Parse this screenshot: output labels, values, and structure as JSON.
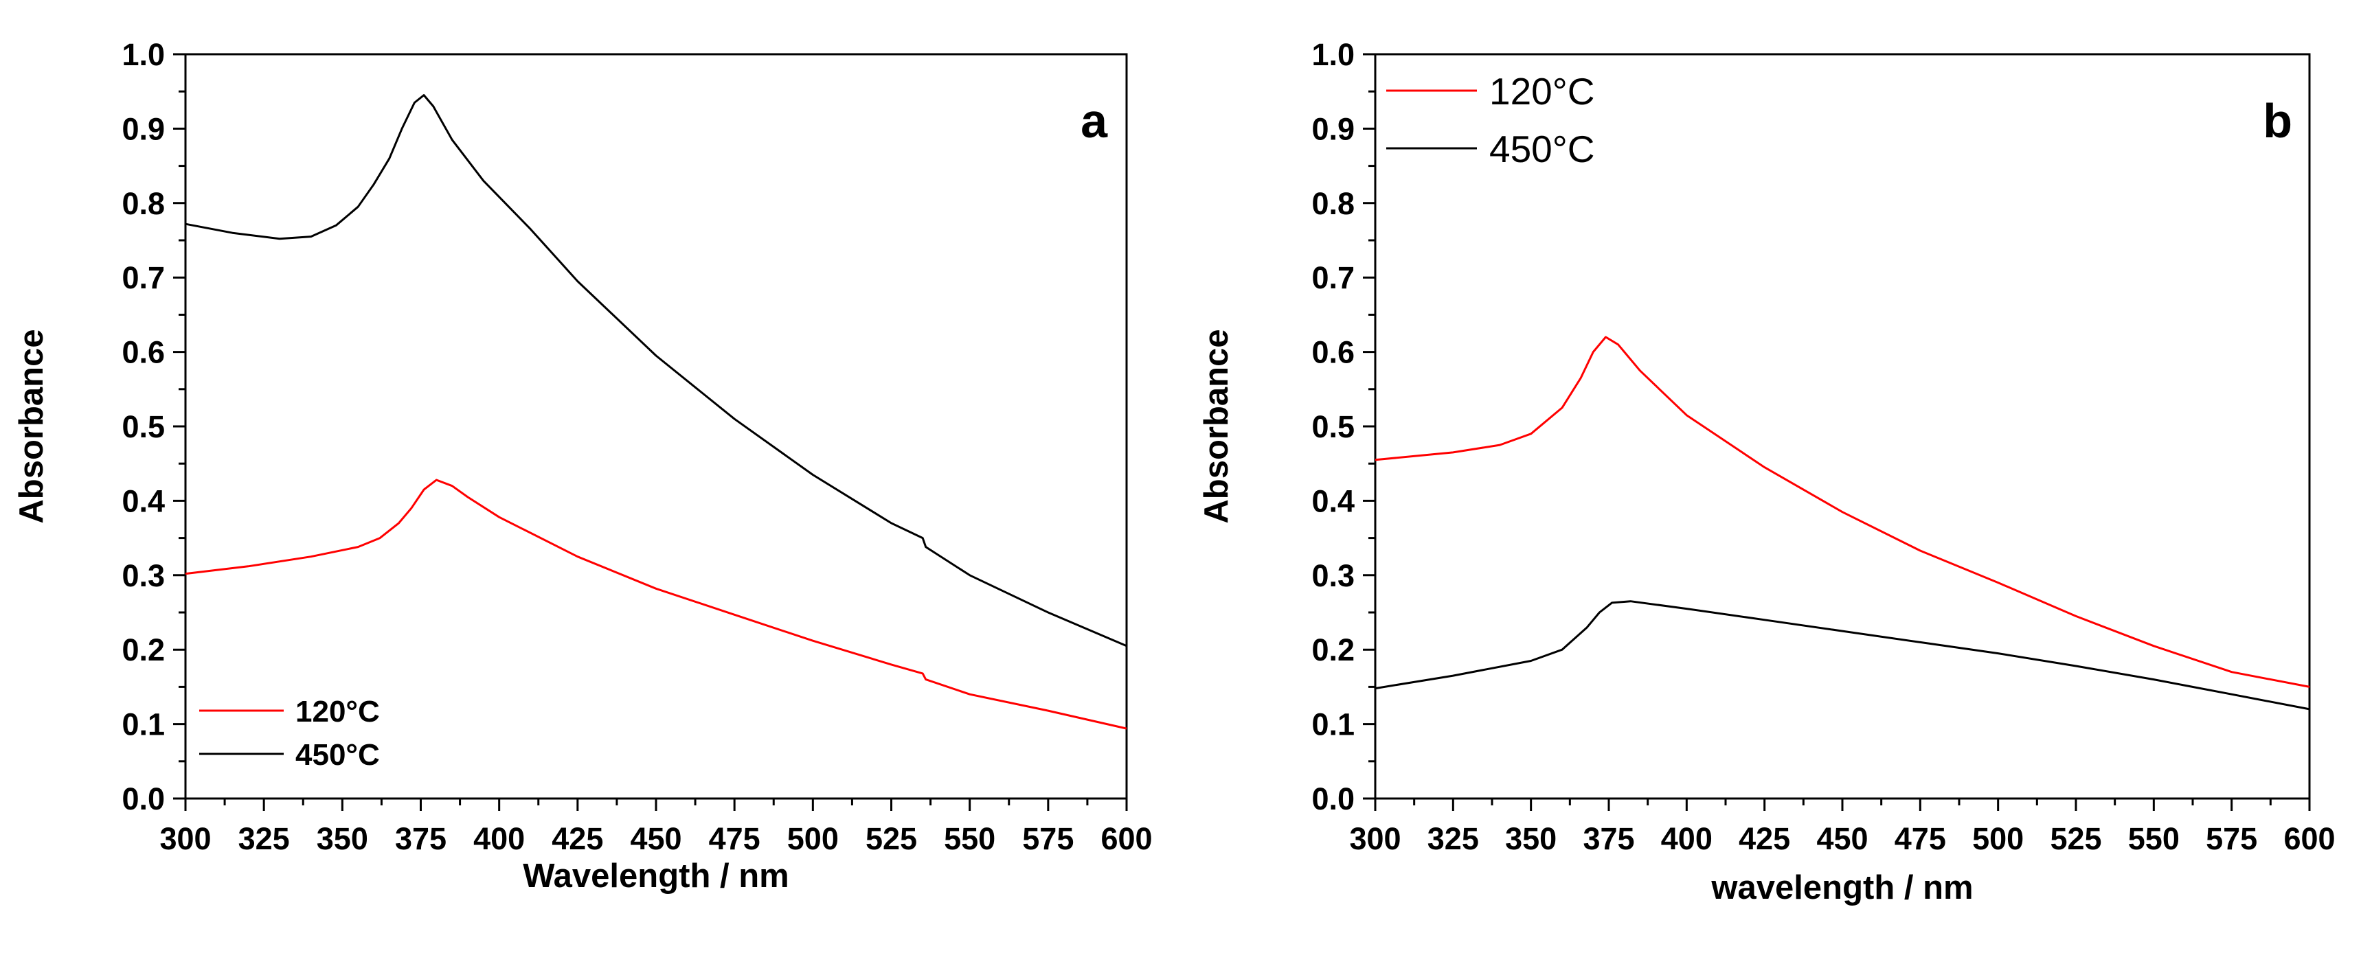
{
  "chart_data": [
    {
      "type": "line",
      "panel_label": "a",
      "xlabel": "Wavelength / nm",
      "ylabel": "Absorbance",
      "xlim": [
        300,
        600
      ],
      "ylim": [
        0.0,
        1.0
      ],
      "x_ticks": [
        "300",
        "325",
        "350",
        "375",
        "400",
        "425",
        "450",
        "475",
        "500",
        "525",
        "550",
        "575",
        "600"
      ],
      "y_ticks": [
        "0.0",
        "0.1",
        "0.2",
        "0.3",
        "0.4",
        "0.5",
        "0.6",
        "0.7",
        "0.8",
        "0.9",
        "1.0"
      ],
      "legend_position": "bottom-left",
      "series": [
        {
          "name": "120°C",
          "color": "#ff0000",
          "points": [
            [
              300,
              0.302
            ],
            [
              320,
              0.312
            ],
            [
              340,
              0.325
            ],
            [
              355,
              0.338
            ],
            [
              362,
              0.35
            ],
            [
              368,
              0.37
            ],
            [
              372,
              0.39
            ],
            [
              376,
              0.415
            ],
            [
              380,
              0.428
            ],
            [
              385,
              0.42
            ],
            [
              390,
              0.405
            ],
            [
              400,
              0.378
            ],
            [
              425,
              0.325
            ],
            [
              450,
              0.282
            ],
            [
              475,
              0.247
            ],
            [
              500,
              0.212
            ],
            [
              525,
              0.18
            ],
            [
              535,
              0.168
            ],
            [
              536,
              0.16
            ],
            [
              550,
              0.14
            ],
            [
              575,
              0.118
            ],
            [
              600,
              0.094
            ]
          ]
        },
        {
          "name": "450°C",
          "color": "#000000",
          "points": [
            [
              300,
              0.772
            ],
            [
              315,
              0.76
            ],
            [
              330,
              0.752
            ],
            [
              340,
              0.755
            ],
            [
              348,
              0.77
            ],
            [
              355,
              0.795
            ],
            [
              360,
              0.825
            ],
            [
              365,
              0.86
            ],
            [
              369,
              0.9
            ],
            [
              373,
              0.935
            ],
            [
              376,
              0.945
            ],
            [
              379,
              0.93
            ],
            [
              385,
              0.885
            ],
            [
              395,
              0.83
            ],
            [
              410,
              0.765
            ],
            [
              425,
              0.695
            ],
            [
              450,
              0.595
            ],
            [
              475,
              0.51
            ],
            [
              500,
              0.435
            ],
            [
              525,
              0.37
            ],
            [
              535,
              0.35
            ],
            [
              536,
              0.338
            ],
            [
              550,
              0.3
            ],
            [
              575,
              0.25
            ],
            [
              600,
              0.205
            ]
          ]
        }
      ]
    },
    {
      "type": "line",
      "panel_label": "b",
      "xlabel": "wavelength / nm",
      "ylabel": "Absorbance",
      "xlim": [
        300,
        600
      ],
      "ylim": [
        0.0,
        1.0
      ],
      "x_ticks": [
        "300",
        "325",
        "350",
        "375",
        "400",
        "425",
        "450",
        "475",
        "500",
        "525",
        "550",
        "575",
        "600"
      ],
      "y_ticks": [
        "0.0",
        "0.1",
        "0.2",
        "0.3",
        "0.4",
        "0.5",
        "0.6",
        "0.7",
        "0.8",
        "0.9",
        "1.0"
      ],
      "legend_position": "top-left",
      "series": [
        {
          "name": "120°C",
          "color": "#ff0000",
          "points": [
            [
              300,
              0.455
            ],
            [
              325,
              0.465
            ],
            [
              340,
              0.475
            ],
            [
              350,
              0.49
            ],
            [
              360,
              0.525
            ],
            [
              366,
              0.565
            ],
            [
              370,
              0.6
            ],
            [
              374,
              0.62
            ],
            [
              378,
              0.61
            ],
            [
              385,
              0.575
            ],
            [
              400,
              0.515
            ],
            [
              425,
              0.445
            ],
            [
              450,
              0.385
            ],
            [
              475,
              0.333
            ],
            [
              500,
              0.29
            ],
            [
              525,
              0.245
            ],
            [
              550,
              0.205
            ],
            [
              575,
              0.17
            ],
            [
              600,
              0.15
            ]
          ]
        },
        {
          "name": "450°C",
          "color": "#000000",
          "points": [
            [
              300,
              0.148
            ],
            [
              325,
              0.165
            ],
            [
              350,
              0.185
            ],
            [
              360,
              0.2
            ],
            [
              368,
              0.23
            ],
            [
              372,
              0.25
            ],
            [
              376,
              0.263
            ],
            [
              382,
              0.265
            ],
            [
              400,
              0.255
            ],
            [
              425,
              0.24
            ],
            [
              450,
              0.225
            ],
            [
              475,
              0.21
            ],
            [
              500,
              0.195
            ],
            [
              525,
              0.178
            ],
            [
              550,
              0.16
            ],
            [
              575,
              0.14
            ],
            [
              600,
              0.12
            ]
          ]
        }
      ]
    }
  ]
}
